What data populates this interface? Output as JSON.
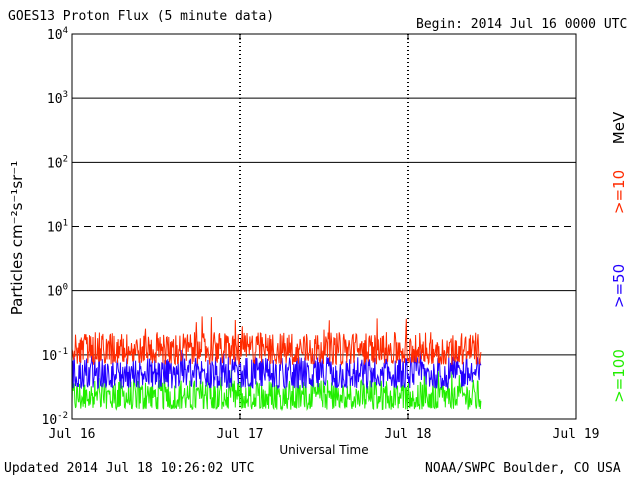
{
  "header": {
    "title": "GOES13 Proton Flux (5 minute data)",
    "begin": "Begin: 2014 Jul 16 0000 UTC"
  },
  "footer": {
    "updated": "Updated 2014 Jul 18 10:26:02 UTC",
    "credit": "NOAA/SWPC Boulder, CO USA"
  },
  "chart_data": {
    "type": "line",
    "title": "GOES13 Proton Flux (5 minute data)",
    "xlabel": "Universal Time",
    "ylabel": "Particles cm⁻²s⁻¹sr⁻¹",
    "yscale": "log",
    "ylim": [
      0.01,
      10000
    ],
    "xlim": [
      "2014-07-16",
      "2014-07-19"
    ],
    "x_ticks": [
      "Jul 16",
      "Jul 17",
      "Jul 18",
      "Jul 19"
    ],
    "y_ticks": [
      {
        "base": "10",
        "exp": "4"
      },
      {
        "base": "10",
        "exp": "3"
      },
      {
        "base": "10",
        "exp": "2"
      },
      {
        "base": "10",
        "exp": "1"
      },
      {
        "base": "10",
        "exp": "0"
      },
      {
        "base": "10",
        "exp": "-1"
      },
      {
        "base": "10",
        "exp": "-2"
      }
    ],
    "data_end": "2014-07-18 10:25",
    "grid": "horizontal lines at each decade (10¹ dashed); dashed vertical day markers",
    "unit_label": "MeV",
    "series": [
      {
        "name": ">=10",
        "color": "#ff2a00",
        "typical": 0.12,
        "min": 0.07,
        "max": 0.4
      },
      {
        "name": ">=50",
        "color": "#2200ff",
        "typical": 0.05,
        "min": 0.03,
        "max": 0.12
      },
      {
        "name": ">=100",
        "color": "#22ee00",
        "typical": 0.022,
        "min": 0.014,
        "max": 0.06
      }
    ]
  }
}
